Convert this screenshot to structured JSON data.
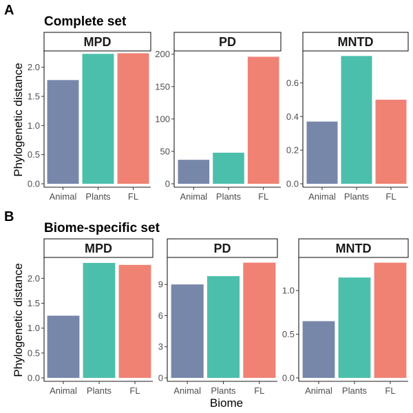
{
  "chart_data": [
    {
      "type": "bar",
      "panel": "A",
      "set_title": "Complete set",
      "ylabel": "Phylogenetic distance",
      "categories": [
        "Animal",
        "Plants",
        "FL"
      ],
      "facets": [
        {
          "name": "MPD",
          "values": [
            1.78,
            2.23,
            2.24
          ],
          "ylim": [
            0,
            2.28
          ],
          "ticks": [
            0.0,
            0.5,
            1.0,
            1.5,
            2.0
          ],
          "tick_labels": [
            "0.0",
            "0.5",
            "1.0",
            "1.5",
            "2.0"
          ]
        },
        {
          "name": "PD",
          "values": [
            37,
            48,
            196
          ],
          "ylim": [
            0,
            205
          ],
          "ticks": [
            0,
            50,
            100,
            150,
            200
          ],
          "tick_labels": [
            "0",
            "50",
            "100",
            "150",
            "200"
          ]
        },
        {
          "name": "MNTD",
          "values": [
            0.37,
            0.76,
            0.5
          ],
          "ylim": [
            0,
            0.79
          ],
          "ticks": [
            0.0,
            0.2,
            0.4,
            0.6
          ],
          "tick_labels": [
            "0.0",
            "0.2",
            "0.4",
            "0.6"
          ]
        }
      ]
    },
    {
      "type": "bar",
      "panel": "B",
      "set_title": "Biome-specific set",
      "ylabel": "Phylogenetic distance",
      "xlabel": "Biome",
      "categories": [
        "Animal",
        "Plants",
        "FL"
      ],
      "facets": [
        {
          "name": "MPD",
          "values": [
            1.25,
            2.31,
            2.27
          ],
          "ylim": [
            0,
            2.42
          ],
          "ticks": [
            0.0,
            0.5,
            1.0,
            1.5,
            2.0
          ],
          "tick_labels": [
            "0.0",
            "0.5",
            "1.0",
            "1.5",
            "2.0"
          ]
        },
        {
          "name": "PD",
          "values": [
            9.0,
            9.8,
            11.1
          ],
          "ylim": [
            0,
            11.6
          ],
          "ticks": [
            0,
            3,
            6,
            9
          ],
          "tick_labels": [
            "0",
            "3",
            "6",
            "9"
          ]
        },
        {
          "name": "MNTD",
          "values": [
            0.65,
            1.15,
            1.32
          ],
          "ylim": [
            0,
            1.38
          ],
          "ticks": [
            0.0,
            0.5,
            1.0
          ],
          "tick_labels": [
            "0.0",
            "0.5",
            "1.0"
          ]
        }
      ]
    }
  ],
  "colors": {
    "Animal": "#7787aa",
    "Plants": "#4cbfac",
    "FL": "#f08274"
  }
}
